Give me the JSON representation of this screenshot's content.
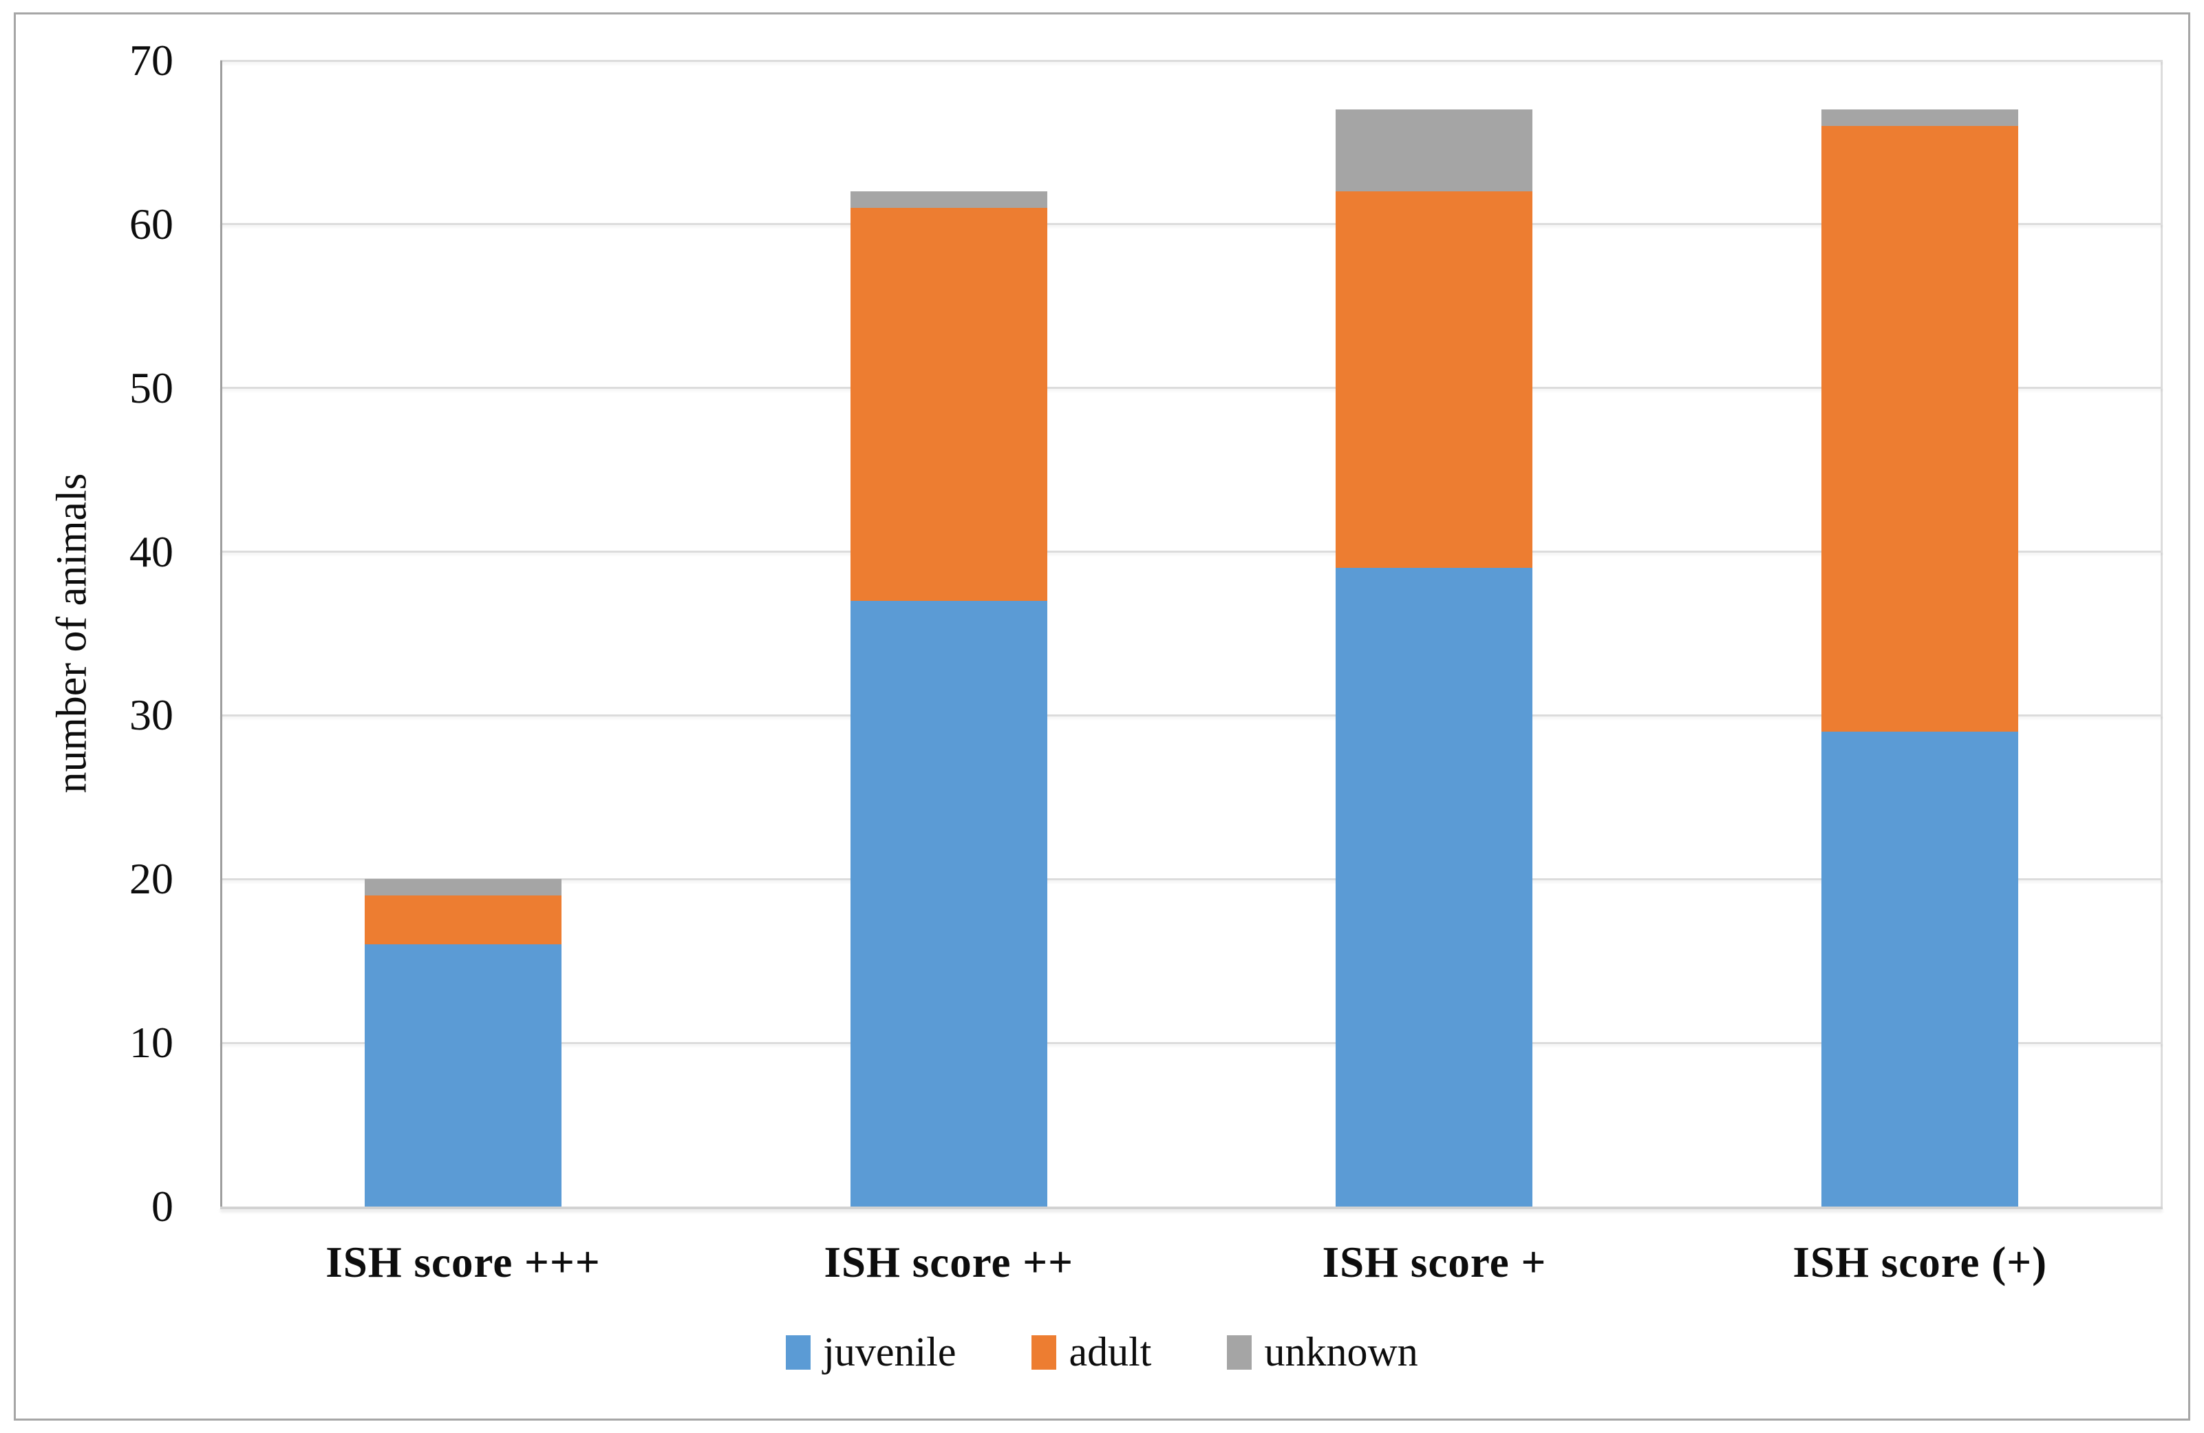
{
  "figure": {
    "background": "#ffffff",
    "border_color": "#a6a6a6"
  },
  "chart_data": {
    "type": "bar",
    "stacked": true,
    "title": "",
    "categories": [
      "ISH score +++",
      "ISH score ++",
      "ISH score +",
      "ISH score (+)"
    ],
    "series": [
      {
        "name": "juvenile",
        "color": "#5b9bd5",
        "values": [
          16,
          37,
          39,
          29
        ]
      },
      {
        "name": "adult",
        "color": "#ed7d31",
        "values": [
          3,
          24,
          23,
          37
        ]
      },
      {
        "name": "unknown",
        "color": "#a5a5a5",
        "values": [
          1,
          1,
          5,
          1
        ]
      }
    ],
    "totals": [
      20,
      62,
      67,
      67
    ],
    "xlabel": "",
    "ylabel": "number of animals",
    "ylim": [
      0,
      70
    ],
    "yticks": [
      0,
      10,
      20,
      30,
      40,
      50,
      60,
      70
    ],
    "ytick_interval": 10,
    "grid": true,
    "gridline_color": "#dcdcdc",
    "axis_line_color": "#9e9e9e",
    "legend_position": "bottom",
    "legend": [
      "juvenile",
      "adult",
      "unknown"
    ]
  }
}
